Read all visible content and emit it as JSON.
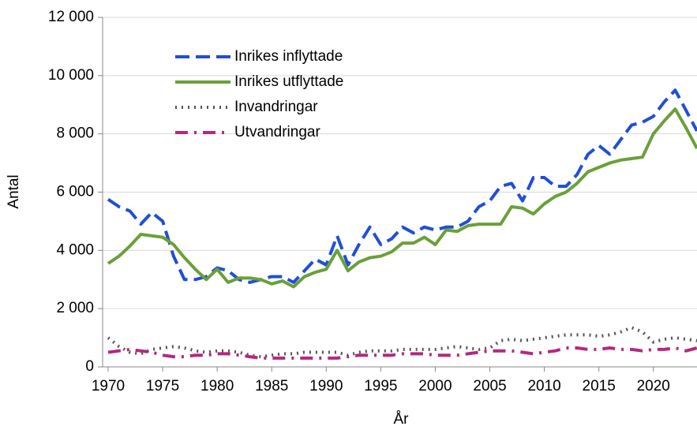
{
  "chart_data": {
    "type": "line",
    "x_label": "År",
    "y_label": "Antal",
    "x": [
      1970,
      1971,
      1972,
      1973,
      1974,
      1975,
      1976,
      1977,
      1978,
      1979,
      1980,
      1981,
      1982,
      1983,
      1984,
      1985,
      1986,
      1987,
      1988,
      1989,
      1990,
      1991,
      1992,
      1993,
      1994,
      1995,
      1996,
      1997,
      1998,
      1999,
      2000,
      2001,
      2002,
      2003,
      2004,
      2005,
      2006,
      2007,
      2008,
      2009,
      2010,
      2011,
      2012,
      2013,
      2014,
      2015,
      2016,
      2017,
      2018,
      2019,
      2020,
      2021,
      2022,
      2023,
      2024
    ],
    "series": [
      {
        "name": "Inrikes inflyttade",
        "color": "#1f4fd8",
        "dash": "18 8",
        "width": 4,
        "values": [
          5750,
          5500,
          5350,
          4900,
          5300,
          5000,
          3800,
          3000,
          3000,
          3100,
          3400,
          3300,
          3000,
          2900,
          3000,
          3100,
          3100,
          2900,
          3300,
          3700,
          3500,
          4500,
          3500,
          4200,
          4800,
          4200,
          4400,
          4800,
          4600,
          4800,
          4700,
          4800,
          4800,
          5000,
          5500,
          5700,
          6200,
          6300,
          5700,
          6500,
          6500,
          6200,
          6200,
          6600,
          7300,
          7600,
          7300,
          7800,
          8300,
          8400,
          8600,
          9100,
          9500,
          8800,
          8100
        ]
      },
      {
        "name": "Inrikes utflyttade",
        "color": "#6aa038",
        "dash": "none",
        "width": 4,
        "values": [
          3550,
          3800,
          4150,
          4550,
          4500,
          4450,
          4200,
          3750,
          3350,
          3000,
          3350,
          2900,
          3050,
          3050,
          3000,
          2850,
          2950,
          2750,
          3100,
          3250,
          3350,
          4000,
          3300,
          3600,
          3750,
          3800,
          3950,
          4250,
          4250,
          4450,
          4200,
          4700,
          4650,
          4850,
          4900,
          4900,
          4900,
          5500,
          5450,
          5250,
          5600,
          5850,
          6000,
          6300,
          6700,
          6850,
          7000,
          7100,
          7150,
          7200,
          8000,
          8450,
          8850,
          8200,
          7500
        ]
      },
      {
        "name": "Invandringar",
        "color": "#555555",
        "dash": "2 6",
        "width": 4,
        "values": [
          1000,
          700,
          500,
          450,
          600,
          650,
          700,
          650,
          550,
          500,
          550,
          550,
          500,
          400,
          350,
          400,
          450,
          450,
          500,
          500,
          500,
          500,
          400,
          500,
          550,
          550,
          550,
          600,
          600,
          600,
          600,
          650,
          700,
          650,
          600,
          650,
          900,
          950,
          900,
          950,
          1000,
          1050,
          1100,
          1100,
          1100,
          1050,
          1100,
          1200,
          1350,
          1200,
          850,
          950,
          1000,
          950,
          900
        ]
      },
      {
        "name": "Utvandringar",
        "color": "#b5287f",
        "dash": "16 8 3 8",
        "width": 4,
        "values": [
          500,
          550,
          600,
          550,
          500,
          400,
          350,
          350,
          400,
          400,
          450,
          450,
          400,
          350,
          300,
          300,
          300,
          300,
          300,
          300,
          300,
          300,
          350,
          400,
          400,
          400,
          400,
          450,
          450,
          450,
          400,
          400,
          400,
          450,
          500,
          550,
          550,
          550,
          500,
          450,
          500,
          550,
          650,
          650,
          600,
          600,
          650,
          600,
          600,
          550,
          600,
          600,
          650,
          550,
          650
        ]
      }
    ],
    "xlim": [
      1970,
      2024
    ],
    "xticks": [
      1970,
      1975,
      1980,
      1985,
      1990,
      1995,
      2000,
      2005,
      2010,
      2015,
      2020
    ],
    "ylim": [
      0,
      12000
    ],
    "yticks": [
      0,
      {
        "value": 2000,
        "label": "2 000"
      },
      {
        "value": 4000,
        "label": "4 000"
      },
      {
        "value": 6000,
        "label": "6 000"
      },
      {
        "value": 8000,
        "label": "8 000"
      },
      {
        "value": 10000,
        "label": "10 000"
      },
      {
        "value": 12000,
        "label": "12 000"
      }
    ],
    "grid": true,
    "legend": "upper left"
  }
}
